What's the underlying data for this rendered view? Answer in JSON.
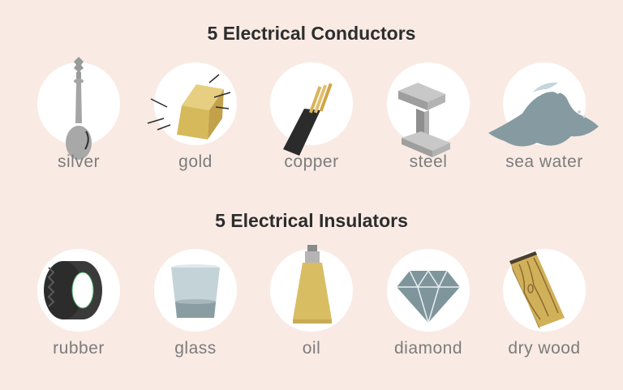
{
  "conductors": {
    "title": "5 Electrical Conductors",
    "items": [
      {
        "label": "silver",
        "icon": "spoon-icon"
      },
      {
        "label": "gold",
        "icon": "gold-bar-icon"
      },
      {
        "label": "copper",
        "icon": "copper-wire-icon"
      },
      {
        "label": "steel",
        "icon": "steel-beam-icon"
      },
      {
        "label": "sea water",
        "icon": "wave-icon"
      }
    ]
  },
  "insulators": {
    "title": "5 Electrical Insulators",
    "items": [
      {
        "label": "rubber",
        "icon": "tire-icon"
      },
      {
        "label": "glass",
        "icon": "drinking-glass-icon"
      },
      {
        "label": "oil",
        "icon": "oil-tube-icon"
      },
      {
        "label": "diamond",
        "icon": "diamond-icon"
      },
      {
        "label": "dry wood",
        "icon": "wood-plank-icon"
      }
    ]
  },
  "colors": {
    "background": "#f9ebe4",
    "circle": "#ffffff",
    "title": "#2d2d2d",
    "label": "#7c7c7c",
    "gold": "#d9bd63",
    "grey": "#a8a8a8",
    "slate": "#7f959c"
  }
}
